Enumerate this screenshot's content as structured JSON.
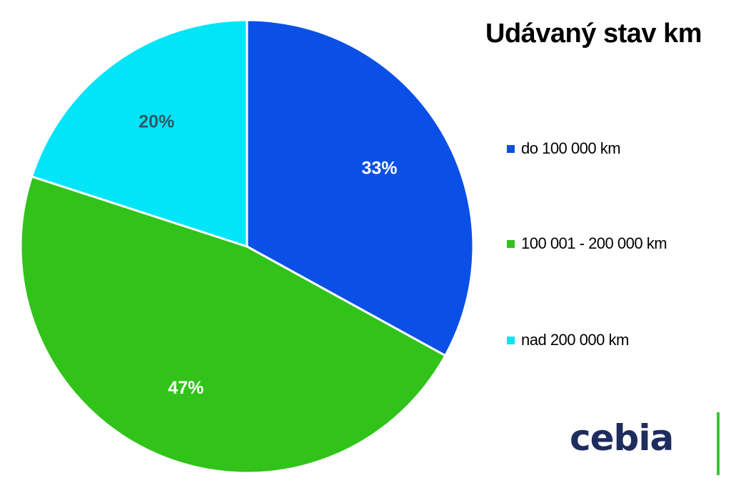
{
  "chart_data": {
    "type": "pie",
    "title": "Udávaný stav km",
    "categories": [
      "do 100 000 km",
      "100 001 - 200 000 km",
      "nad 200 000 km"
    ],
    "values": [
      33,
      47,
      20
    ],
    "value_labels": [
      "33%",
      "47%",
      "20%"
    ],
    "colors": [
      "#0a50e6",
      "#31c31a",
      "#00e5f8"
    ],
    "label_colors": [
      "#ffffff",
      "#ffffff",
      "#2c5a66"
    ],
    "legend_position": "right",
    "start_angle": "12 o'clock",
    "direction": "clockwise"
  },
  "legend": {
    "items": [
      {
        "label": "do 100 000 km",
        "color": "#0a50e6"
      },
      {
        "label": "100 001 - 200 000 km",
        "color": "#31c31a"
      },
      {
        "label": "nad 200 000 km",
        "color": "#00e5f8"
      }
    ]
  },
  "brand": {
    "name": "cebia",
    "color": "#1e2c5e",
    "accent_color": "#3cc33c"
  }
}
